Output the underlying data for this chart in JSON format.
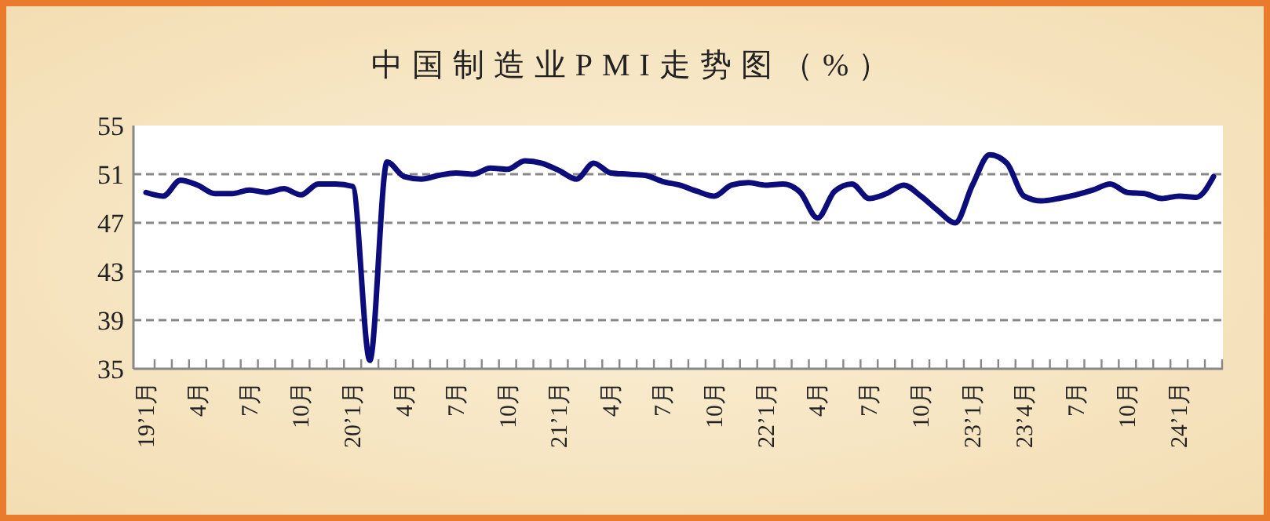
{
  "chart_data": {
    "type": "line",
    "title": "中国制造业PMI走势图（%）",
    "categories": [
      "19’1月",
      null,
      null,
      "4月",
      null,
      null,
      "7月",
      null,
      null,
      "10月",
      null,
      null,
      "20’1月",
      null,
      null,
      "4月",
      null,
      null,
      "7月",
      null,
      null,
      "10月",
      null,
      null,
      "21’1月",
      null,
      null,
      "4月",
      null,
      null,
      "7月",
      null,
      null,
      "10月",
      null,
      null,
      "22’1月",
      null,
      null,
      "4月",
      null,
      null,
      "7月",
      null,
      null,
      "10月",
      null,
      null,
      "23’1月",
      null,
      null,
      "23’4月",
      null,
      null,
      "7月",
      null,
      null,
      "10月",
      null,
      null,
      "24’1月",
      null,
      null
    ],
    "series": [
      {
        "color": "#0c0c7a",
        "values": [
          49.5,
          49.2,
          50.5,
          50.1,
          49.4,
          49.4,
          49.7,
          49.5,
          49.8,
          49.3,
          50.2,
          50.2,
          50.0,
          35.7,
          52.0,
          50.8,
          50.6,
          50.9,
          51.1,
          51.0,
          51.5,
          51.4,
          52.1,
          51.9,
          51.3,
          50.6,
          51.9,
          51.1,
          51.0,
          50.9,
          50.4,
          50.1,
          49.6,
          49.2,
          50.1,
          50.3,
          50.1,
          50.2,
          49.5,
          47.4,
          49.6,
          50.2,
          49.0,
          49.4,
          50.1,
          49.2,
          48.0,
          47.0,
          50.1,
          52.6,
          51.9,
          49.2,
          48.8,
          49.0,
          49.3,
          49.7,
          50.2,
          49.5,
          49.4,
          49.0,
          49.2,
          49.1,
          50.8
        ]
      }
    ],
    "ylim": [
      35,
      55
    ],
    "yticks": [
      35,
      39,
      43,
      47,
      51,
      55
    ],
    "grid": "y",
    "line_style": "solid",
    "marker": "none"
  }
}
